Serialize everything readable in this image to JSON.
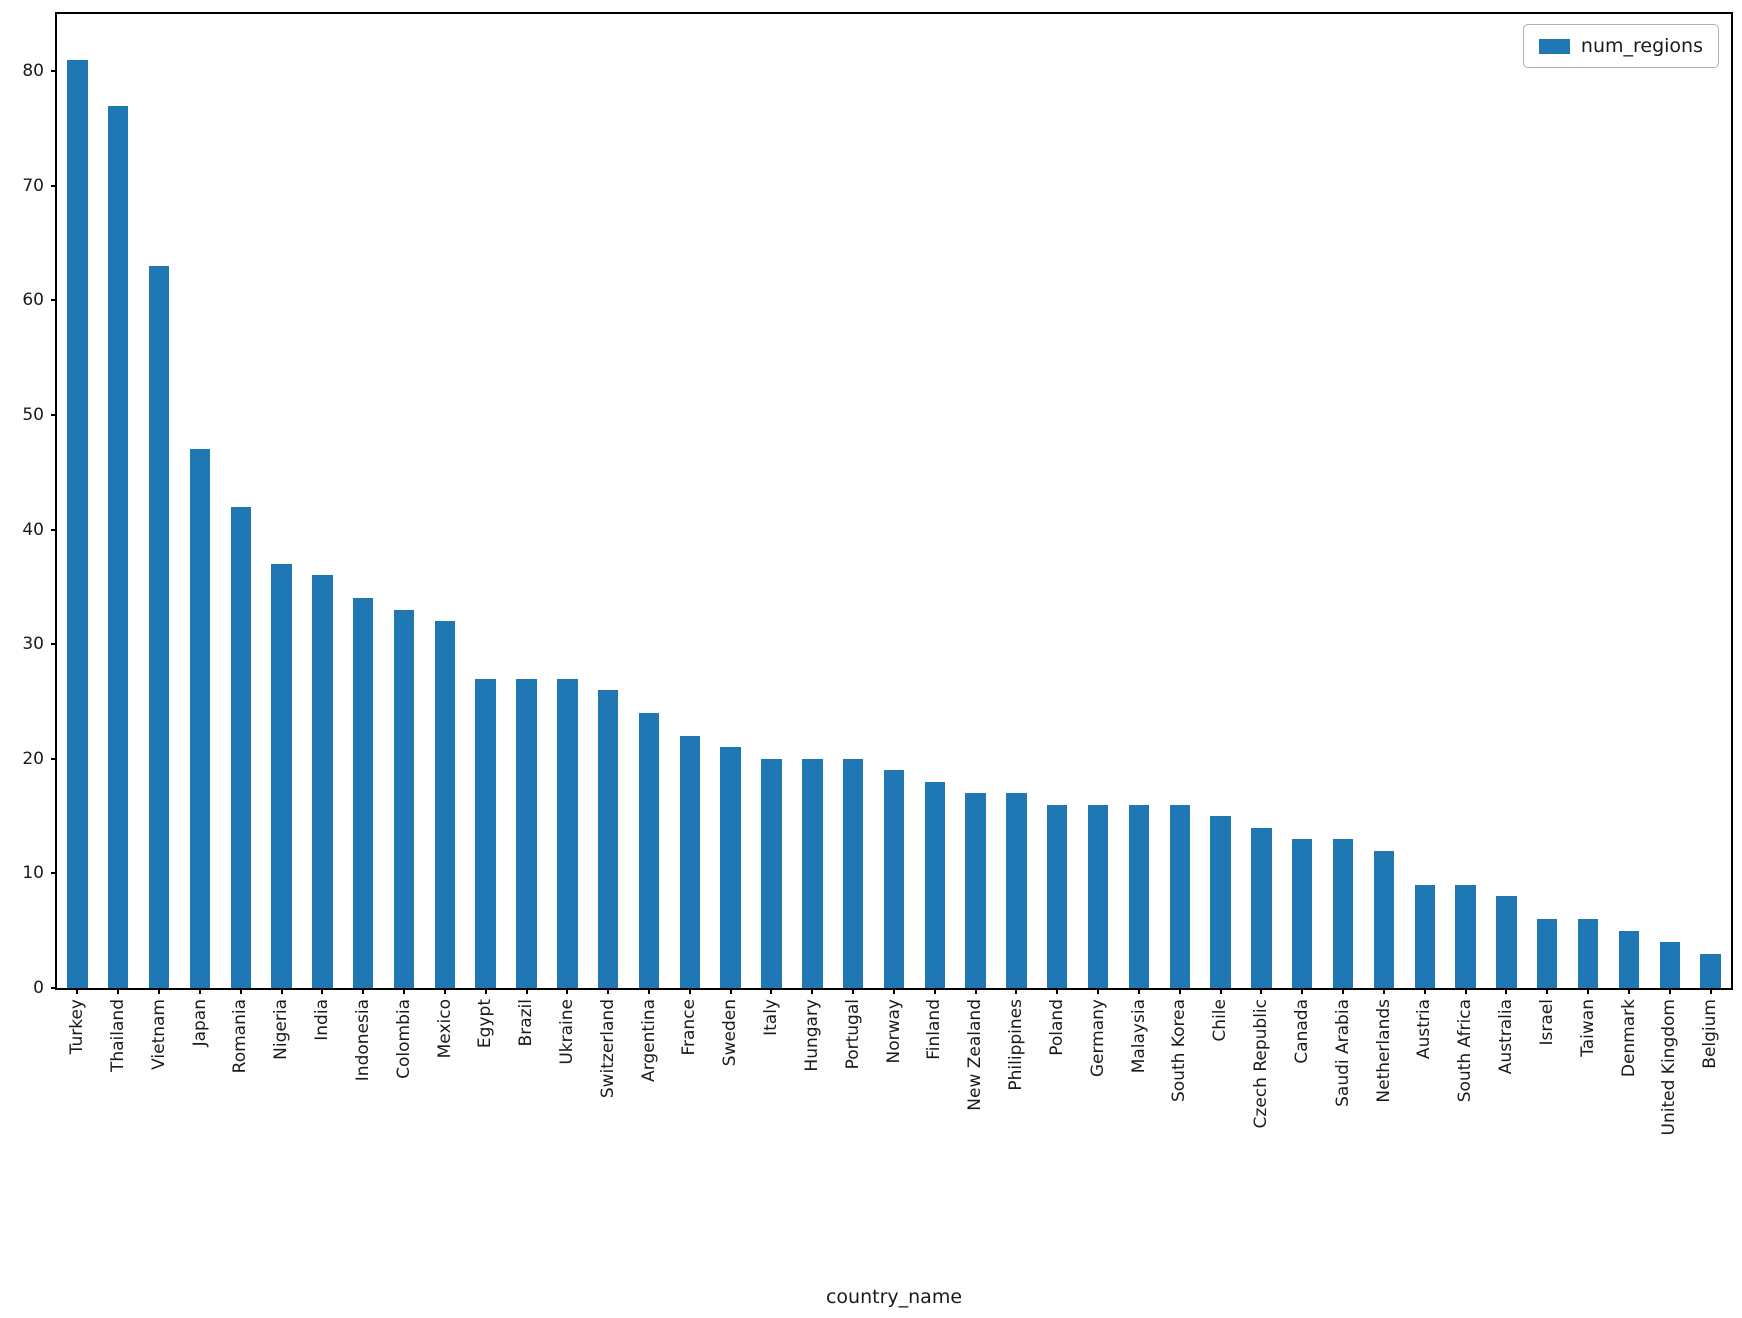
{
  "chart_data": {
    "type": "bar",
    "title": "",
    "xlabel": "country_name",
    "ylabel": "",
    "legend": {
      "label": "num_regions",
      "position": "upper right"
    },
    "bar_color": "#1f77b4",
    "grid": false,
    "ylim": [
      0,
      85
    ],
    "yticks": [
      0,
      10,
      20,
      30,
      40,
      50,
      60,
      70,
      80
    ],
    "categories": [
      "Turkey",
      "Thailand",
      "Vietnam",
      "Japan",
      "Romania",
      "Nigeria",
      "India",
      "Indonesia",
      "Colombia",
      "Mexico",
      "Egypt",
      "Brazil",
      "Ukraine",
      "Switzerland",
      "Argentina",
      "France",
      "Sweden",
      "Italy",
      "Hungary",
      "Portugal",
      "Norway",
      "Finland",
      "New Zealand",
      "Philippines",
      "Poland",
      "Germany",
      "Malaysia",
      "South Korea",
      "Chile",
      "Czech Republic",
      "Canada",
      "Saudi Arabia",
      "Netherlands",
      "Austria",
      "South Africa",
      "Australia",
      "Israel",
      "Taiwan",
      "Denmark",
      "United Kingdom",
      "Belgium"
    ],
    "values": [
      81,
      77,
      63,
      47,
      42,
      37,
      36,
      34,
      33,
      32,
      27,
      27,
      27,
      26,
      24,
      22,
      21,
      20,
      20,
      20,
      19,
      18,
      17,
      17,
      16,
      16,
      16,
      16,
      15,
      14,
      13,
      13,
      12,
      9,
      9,
      8,
      6,
      6,
      5,
      4,
      3
    ]
  }
}
